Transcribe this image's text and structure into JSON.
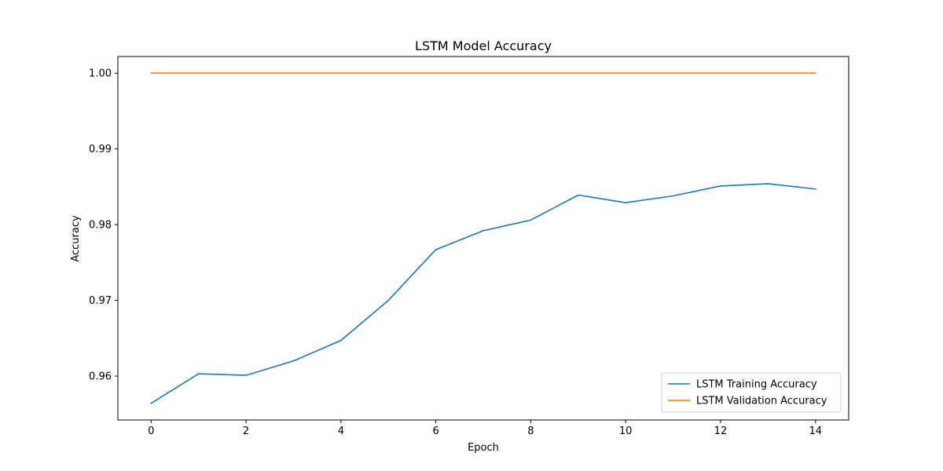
{
  "chart_data": {
    "type": "line",
    "title": "LSTM Model Accuracy",
    "xlabel": "Epoch",
    "ylabel": "Accuracy",
    "x": [
      0,
      1,
      2,
      3,
      4,
      5,
      6,
      7,
      8,
      9,
      10,
      11,
      12,
      13,
      14
    ],
    "xticks": [
      0,
      2,
      4,
      6,
      8,
      10,
      12,
      14
    ],
    "xlim": [
      -0.7,
      14.7
    ],
    "yticks": [
      0.96,
      0.97,
      0.98,
      0.99,
      1.0
    ],
    "ytick_labels": [
      "0.96",
      "0.97",
      "0.98",
      "0.99",
      "1.00"
    ],
    "ylim": [
      0.9542,
      1.0022
    ],
    "grid": false,
    "legend_position": "bottom-right",
    "series": [
      {
        "name": "LSTM Training Accuracy",
        "color": "#1f77b4",
        "values": [
          0.9564,
          0.9603,
          0.9601,
          0.962,
          0.9647,
          0.97,
          0.9767,
          0.9792,
          0.9806,
          0.9839,
          0.9829,
          0.9838,
          0.9851,
          0.9854,
          0.9847
        ]
      },
      {
        "name": "LSTM Validation Accuracy",
        "color": "#ff7f0e",
        "values": [
          1.0,
          1.0,
          1.0,
          1.0,
          1.0,
          1.0,
          1.0,
          1.0,
          1.0,
          1.0,
          1.0,
          1.0,
          1.0,
          1.0,
          1.0
        ]
      }
    ]
  }
}
